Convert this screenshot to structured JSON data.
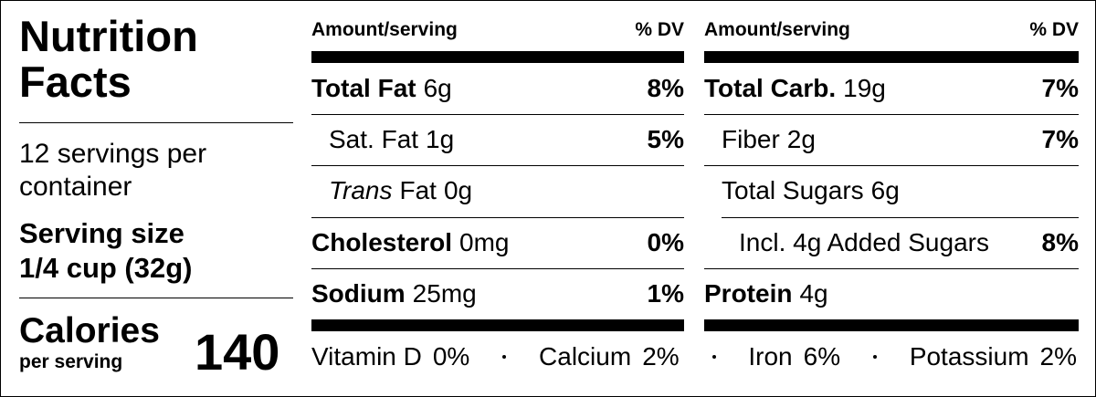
{
  "title": "Nutrition Facts",
  "servings": "12 servings per container",
  "serving_size_label": "Serving size",
  "serving_size": "1/4 cup (32g)",
  "calories_label": "Calories",
  "calories_sub": "per serving",
  "calories": 140,
  "columns": [
    {
      "header_amount": "Amount/serving",
      "header_dv": "% DV",
      "rows": [
        {
          "name": "Total Fat",
          "amount": "6g",
          "dv": "8%",
          "subrows": [
            {
              "name": "Sat. Fat",
              "amount": "1g",
              "dv": "5%"
            },
            {
              "name_italic": "Trans",
              "name": "Fat",
              "amount": "0g"
            }
          ]
        },
        {
          "name": "Cholesterol",
          "amount": "0mg",
          "dv": "0%"
        },
        {
          "name": "Sodium",
          "amount": "25mg",
          "dv": "1%"
        }
      ]
    },
    {
      "header_amount": "Amount/serving",
      "header_dv": "% DV",
      "rows": [
        {
          "name": "Total Carb.",
          "amount": "19g",
          "dv": "7%",
          "subrows": [
            {
              "name": "Fiber",
              "amount": "2g",
              "dv": "7%"
            },
            {
              "name": "Total Sugars",
              "amount": "6g",
              "subrows": [
                {
                  "name": "Incl. 4g Added Sugars",
                  "dv": "8%"
                }
              ]
            }
          ]
        },
        {
          "name": "Protein",
          "amount": "4g"
        }
      ]
    }
  ],
  "footer": [
    {
      "name": "Vitamin D",
      "dv": "0%"
    },
    {
      "name": "Calcium",
      "dv": "2%"
    },
    {
      "name": "Iron",
      "dv": "6%"
    },
    {
      "name": "Potassium",
      "dv": "2%"
    }
  ]
}
